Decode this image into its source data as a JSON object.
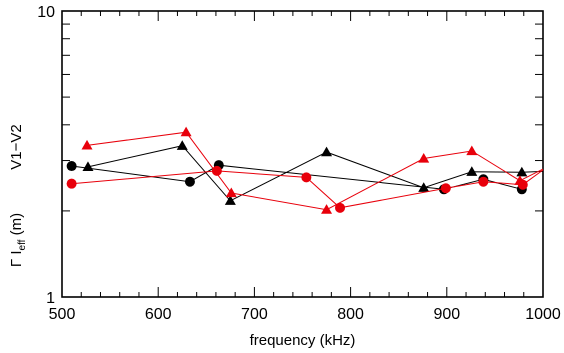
{
  "chart_data": {
    "type": "line",
    "title": "",
    "xlabel": "frequency (kHz)",
    "ylabel": {
      "prefix": "Γ I",
      "subscript": "eff",
      "suffix": " (m)",
      "annotation": "V1−V2"
    },
    "xlim": [
      500,
      1000
    ],
    "ylim": [
      1,
      10
    ],
    "yscale": "log",
    "xticks": [
      500,
      600,
      700,
      800,
      900,
      1000
    ],
    "xtick_labels": [
      "500",
      "600",
      "700",
      "800",
      "900",
      "1000"
    ],
    "yticks": [
      1,
      10
    ],
    "ytick_labels": [
      "1",
      "10"
    ],
    "grid": false,
    "series": [
      {
        "color": "#000000",
        "marker": "circle",
        "x": [
          510,
          633,
          663,
          897,
          938,
          978
        ],
        "y": [
          2.87,
          2.53,
          2.89,
          2.38,
          2.58,
          2.38
        ]
      },
      {
        "color": "#000000",
        "marker": "triangle",
        "x": [
          527,
          625,
          675,
          775,
          876,
          926,
          978,
          1000
        ],
        "y": [
          2.85,
          3.38,
          2.17,
          3.21,
          2.41,
          2.74,
          2.73,
          2.75
        ]
      },
      {
        "color": "#e8000b",
        "marker": "circle",
        "x": [
          510,
          661,
          754,
          789,
          899,
          938,
          979,
          1000
        ],
        "y": [
          2.49,
          2.76,
          2.62,
          2.05,
          2.4,
          2.53,
          2.47,
          2.78
        ]
      },
      {
        "color": "#e8000b",
        "marker": "triangle",
        "x": [
          526,
          629,
          676,
          775,
          876,
          926,
          976,
          1000
        ],
        "y": [
          3.39,
          3.77,
          2.31,
          2.02,
          3.05,
          3.24,
          2.55,
          2.8
        ]
      }
    ]
  }
}
